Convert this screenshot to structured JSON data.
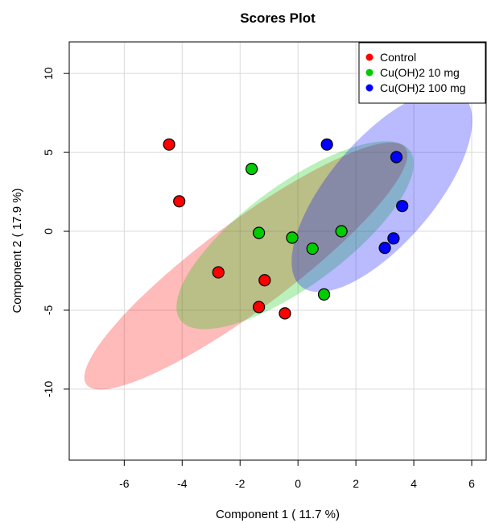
{
  "chart_data": {
    "type": "scatter",
    "title": "Scores Plot",
    "xlabel": "Component 1 ( 11.7 %)",
    "ylabel": "Component 2 ( 17.9 %)",
    "xlim": [
      -7.9,
      6.5
    ],
    "ylim": [
      -14.5,
      12.0
    ],
    "xticks": [
      -6,
      -4,
      -2,
      0,
      2,
      4,
      6
    ],
    "yticks": [
      -10,
      -5,
      0,
      5,
      10
    ],
    "grid": true,
    "legend_position": "top-right",
    "series": [
      {
        "name": "Control",
        "color": "#ff0000",
        "fill": "#ff0000",
        "points": [
          [
            -4.45,
            5.5
          ],
          [
            -4.1,
            1.9
          ],
          [
            -2.75,
            -2.6
          ],
          [
            -1.15,
            -3.1
          ],
          [
            -1.35,
            -4.8
          ],
          [
            -0.45,
            -5.2
          ]
        ],
        "ellipse": {
          "cx": -1.8,
          "cy": -2.2,
          "rx": 2.02,
          "ry": 9.4,
          "angle_deg": 34.5
        }
      },
      {
        "name": "Cu(OH)2 10 mg",
        "color": "#00cd00",
        "fill": "#00cd00",
        "points": [
          [
            -1.6,
            3.95
          ],
          [
            -1.35,
            -0.1
          ],
          [
            -0.2,
            -0.4
          ],
          [
            0.5,
            -1.1
          ],
          [
            1.5,
            0.0
          ],
          [
            0.9,
            -4.0
          ]
        ],
        "ellipse": {
          "cx": -0.1,
          "cy": -0.25,
          "rx": 2.3,
          "ry": 6.85,
          "angle_deg": 31.7
        }
      },
      {
        "name": "Cu(OH)2 100 mg",
        "color": "#0000ff",
        "fill": "#0000ff",
        "points": [
          [
            1.0,
            5.5
          ],
          [
            3.4,
            4.7
          ],
          [
            3.6,
            1.6
          ],
          [
            3.3,
            -0.45
          ],
          [
            3.0,
            -1.05
          ]
        ],
        "ellipse": {
          "cx": 2.9,
          "cy": 2.55,
          "rx": 2.1,
          "ry": 6.8,
          "angle_deg": 20.9
        }
      }
    ]
  }
}
